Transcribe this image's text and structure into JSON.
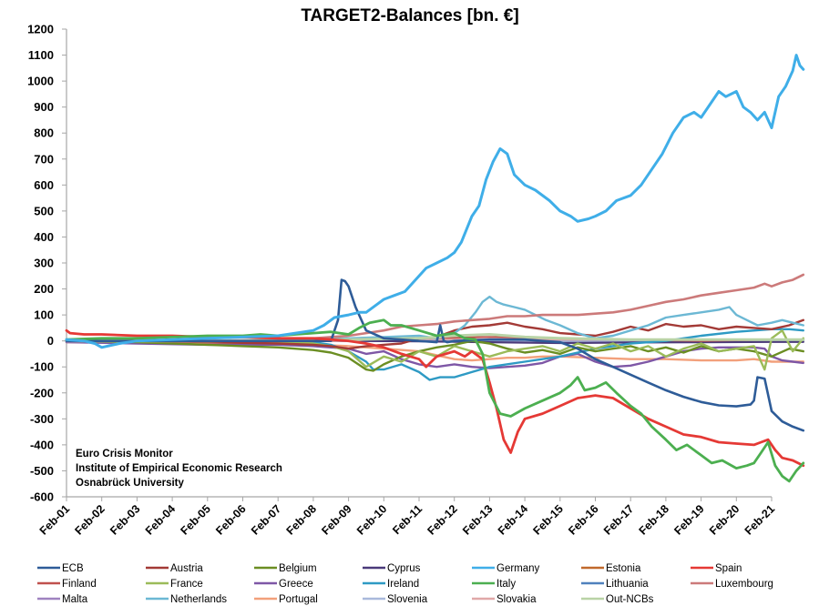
{
  "chart_data": {
    "type": "line",
    "title": "TARGET2-Balances [bn. €]",
    "xlabel": "",
    "ylabel": "",
    "ylim": [
      -600,
      1200
    ],
    "yticks": [
      1200,
      1100,
      1000,
      900,
      800,
      700,
      600,
      500,
      400,
      300,
      200,
      100,
      0,
      -100,
      -200,
      -300,
      -400,
      -500,
      -600
    ],
    "xlim": [
      2001.0,
      2021.0
    ],
    "xtick_labels": [
      "Feb-01",
      "Feb-02",
      "Feb-03",
      "Feb-04",
      "Feb-05",
      "Feb-06",
      "Feb-07",
      "Feb-08",
      "Feb-09",
      "Feb-10",
      "Feb-11",
      "Feb-12",
      "Feb-13",
      "Feb-14",
      "Feb-15",
      "Feb-16",
      "Feb-17",
      "Feb-18",
      "Feb-19",
      "Feb-20",
      "Feb-21"
    ],
    "grid": false,
    "legend_position": "bottom",
    "annotation": [
      "Euro Crisis Monitor",
      "Institute of Empirical Economic Research",
      "Osnabrück University"
    ],
    "x_note": "x values are years since Feb-01 (0 = Feb 2001, 20 = Feb 2021)",
    "series": [
      {
        "name": "ECB",
        "color": "#2E5C98",
        "width": 2.6,
        "x": [
          0,
          2,
          4,
          6,
          7,
          7.5,
          7.7,
          7.8,
          7.9,
          8.0,
          8.2,
          8.5,
          9,
          9.5,
          10,
          10.5,
          10.6,
          10.7,
          10.8,
          11,
          12,
          13,
          13.5,
          14,
          14.5,
          15,
          15.5,
          16,
          16.5,
          17,
          17.5,
          18,
          18.5,
          19,
          19.4,
          19.5,
          19.6,
          19.8,
          20,
          20.3,
          20.6,
          20.9
        ],
        "y": [
          0,
          0,
          0,
          0,
          0,
          0,
          80,
          235,
          230,
          210,
          130,
          40,
          10,
          5,
          0,
          -5,
          60,
          0,
          -5,
          0,
          5,
          5,
          0,
          -5,
          -30,
          -70,
          -100,
          -130,
          -160,
          -190,
          -215,
          -235,
          -248,
          -252,
          -245,
          -230,
          -140,
          -145,
          -270,
          -310,
          -330,
          -345
        ]
      },
      {
        "name": "Austria",
        "color": "#A33A36",
        "width": 2.4,
        "x": [
          0,
          2,
          4,
          6,
          7,
          7.5,
          8,
          8.5,
          9,
          9.5,
          10,
          10.5,
          11,
          11.5,
          12,
          12.5,
          13,
          13.5,
          14,
          14.5,
          15,
          15.5,
          16,
          16.5,
          17,
          17.5,
          18,
          18.5,
          19,
          19.5,
          20,
          20.5,
          20.9
        ],
        "y": [
          0,
          0,
          -5,
          -10,
          -15,
          -20,
          -30,
          -20,
          -15,
          -10,
          10,
          15,
          40,
          55,
          60,
          70,
          55,
          45,
          30,
          25,
          20,
          35,
          55,
          40,
          65,
          55,
          60,
          45,
          55,
          50,
          45,
          60,
          80
        ]
      },
      {
        "name": "Belgium",
        "color": "#6B8E23",
        "width": 2.4,
        "x": [
          0,
          2,
          4,
          5,
          6,
          7,
          7.5,
          8,
          8.5,
          8.7,
          9,
          9.5,
          10,
          10.5,
          11,
          11.5,
          12,
          12.5,
          13,
          13.5,
          14,
          14.5,
          15,
          15.5,
          16,
          16.5,
          17,
          17.5,
          18,
          18.5,
          19,
          19.5,
          20,
          20.5,
          20.9
        ],
        "y": [
          0,
          -5,
          -15,
          -20,
          -25,
          -35,
          -45,
          -65,
          -110,
          -115,
          -90,
          -60,
          -40,
          -25,
          -15,
          0,
          -10,
          -30,
          -45,
          -35,
          -50,
          -25,
          -40,
          -30,
          -20,
          -40,
          -25,
          -45,
          -20,
          -40,
          -30,
          -40,
          -60,
          -30,
          -40
        ]
      },
      {
        "name": "Cyprus",
        "color": "#4B3A7A",
        "width": 2.2,
        "x": [
          0,
          4,
          8,
          10,
          12,
          14,
          16,
          18,
          20,
          20.9
        ],
        "y": [
          0,
          0,
          0,
          -2,
          -5,
          -8,
          -6,
          -5,
          -4,
          -4
        ]
      },
      {
        "name": "Germany",
        "color": "#3FAEE8",
        "width": 3.0,
        "x": [
          0,
          0.5,
          0.8,
          1.0,
          1.5,
          2,
          3,
          4,
          5,
          6,
          6.5,
          7,
          7.3,
          7.6,
          8,
          8.3,
          8.5,
          8.8,
          9,
          9.3,
          9.6,
          9.8,
          10,
          10.2,
          10.5,
          10.8,
          11,
          11.2,
          11.5,
          11.7,
          11.9,
          12.1,
          12.3,
          12.5,
          12.7,
          13,
          13.3,
          13.7,
          14,
          14.3,
          14.5,
          14.8,
          15,
          15.3,
          15.6,
          16,
          16.3,
          16.6,
          16.9,
          17.2,
          17.5,
          17.8,
          18,
          18.3,
          18.5,
          18.7,
          19,
          19.2,
          19.4,
          19.6,
          19.8,
          20,
          20.2,
          20.4,
          20.6,
          20.7,
          20.8,
          20.9
        ],
        "y": [
          5,
          0,
          -10,
          -25,
          -10,
          0,
          5,
          10,
          15,
          20,
          30,
          40,
          60,
          90,
          100,
          110,
          110,
          140,
          160,
          175,
          190,
          220,
          250,
          280,
          300,
          320,
          340,
          380,
          480,
          520,
          620,
          690,
          740,
          720,
          640,
          600,
          580,
          540,
          500,
          480,
          460,
          470,
          480,
          500,
          540,
          560,
          600,
          660,
          720,
          800,
          860,
          880,
          860,
          920,
          960,
          940,
          960,
          900,
          880,
          850,
          880,
          820,
          940,
          980,
          1040,
          1100,
          1060,
          1045
        ]
      },
      {
        "name": "Estonia",
        "color": "#C0692C",
        "width": 2.0,
        "x": [
          0,
          4,
          8,
          12,
          16,
          20,
          20.9
        ],
        "y": [
          0,
          0,
          0,
          -1,
          -1,
          -2,
          -2
        ]
      },
      {
        "name": "Spain",
        "color": "#E53935",
        "width": 2.8,
        "x": [
          0,
          0.1,
          0.5,
          1,
          2,
          3,
          4,
          5,
          6,
          7,
          7.5,
          8,
          8.5,
          9,
          9.5,
          10,
          10.2,
          10.5,
          11,
          11.3,
          11.5,
          11.8,
          12,
          12.2,
          12.4,
          12.6,
          12.8,
          13,
          13.5,
          14,
          14.5,
          15,
          15.5,
          16,
          16.5,
          17,
          17.5,
          18,
          18.5,
          19,
          19.5,
          19.7,
          19.9,
          20.1,
          20.3,
          20.6,
          20.9
        ],
        "y": [
          40,
          30,
          25,
          25,
          20,
          20,
          15,
          15,
          10,
          10,
          5,
          0,
          -10,
          -25,
          -50,
          -70,
          -100,
          -60,
          -40,
          -60,
          -40,
          -70,
          -160,
          -260,
          -380,
          -430,
          -350,
          -300,
          -280,
          -250,
          -220,
          -210,
          -220,
          -260,
          -300,
          -330,
          -360,
          -370,
          -390,
          -395,
          -400,
          -390,
          -380,
          -420,
          -450,
          -460,
          -480
        ]
      },
      {
        "name": "Finland",
        "color": "#C0504D",
        "width": 2.0,
        "x": [
          0,
          4,
          8,
          10,
          12,
          14,
          16,
          18,
          20,
          20.9
        ],
        "y": [
          0,
          0,
          5,
          10,
          15,
          10,
          5,
          0,
          5,
          5
        ]
      },
      {
        "name": "France",
        "color": "#9BBB59",
        "width": 2.4,
        "x": [
          0,
          2,
          4,
          6,
          7,
          7.5,
          8,
          8.5,
          9,
          9.5,
          10,
          10.5,
          11,
          11.5,
          12,
          12.5,
          13,
          13.5,
          14,
          14.5,
          15,
          15.5,
          16,
          16.5,
          17,
          17.5,
          18,
          18.5,
          19,
          19.5,
          19.8,
          20,
          20.3,
          20.6,
          20.9
        ],
        "y": [
          0,
          5,
          0,
          -5,
          -10,
          -20,
          -40,
          -100,
          -60,
          -80,
          -40,
          -60,
          -20,
          -40,
          -60,
          -40,
          -30,
          -20,
          -40,
          -10,
          -30,
          -10,
          -40,
          -20,
          -60,
          -30,
          -10,
          -40,
          -30,
          -20,
          -110,
          10,
          40,
          -40,
          10
        ]
      },
      {
        "name": "Greece",
        "color": "#7E57A6",
        "width": 2.4,
        "x": [
          0,
          2,
          4,
          6,
          7,
          8,
          8.5,
          9,
          9.5,
          10,
          10.5,
          11,
          11.5,
          12,
          12.5,
          13,
          13.5,
          14,
          14.5,
          15,
          15.5,
          16,
          16.5,
          17,
          17.5,
          18,
          18.5,
          19,
          19.5,
          19.8,
          20,
          20.3,
          20.6,
          20.9
        ],
        "y": [
          -5,
          -10,
          -15,
          -15,
          -20,
          -30,
          -50,
          -40,
          -70,
          -90,
          -100,
          -90,
          -100,
          -105,
          -100,
          -95,
          -85,
          -60,
          -50,
          -80,
          -100,
          -95,
          -80,
          -60,
          -40,
          -30,
          -25,
          -25,
          -25,
          -30,
          -60,
          -75,
          -80,
          -85
        ]
      },
      {
        "name": "Ireland",
        "color": "#2E9AC4",
        "width": 2.4,
        "x": [
          0,
          4,
          7,
          7.5,
          8,
          8.5,
          8.7,
          9,
          9.5,
          10,
          10.3,
          10.6,
          11,
          11.5,
          12,
          13,
          14,
          15,
          16,
          17,
          18,
          19,
          20,
          20.5,
          20.9
        ],
        "y": [
          0,
          0,
          -5,
          -15,
          -40,
          -80,
          -110,
          -110,
          -90,
          -120,
          -150,
          -140,
          -140,
          -120,
          -100,
          -80,
          -60,
          -30,
          -10,
          0,
          20,
          35,
          45,
          45,
          40
        ]
      },
      {
        "name": "Italy",
        "color": "#4CAF50",
        "width": 2.8,
        "x": [
          0,
          1,
          2,
          3,
          4,
          5,
          5.5,
          6,
          6.5,
          7,
          7.5,
          8,
          8.3,
          8.6,
          9,
          9.2,
          9.5,
          10,
          10.5,
          11,
          11.3,
          11.6,
          11.8,
          12,
          12.3,
          12.6,
          13,
          13.5,
          14,
          14.3,
          14.5,
          14.7,
          15,
          15.3,
          15.6,
          16,
          16.3,
          16.6,
          17,
          17.3,
          17.6,
          18,
          18.3,
          18.6,
          19,
          19.3,
          19.5,
          19.7,
          19.9,
          20.1,
          20.3,
          20.5,
          20.7,
          20.9
        ],
        "y": [
          5,
          10,
          10,
          15,
          20,
          20,
          25,
          20,
          25,
          30,
          35,
          25,
          50,
          70,
          80,
          60,
          60,
          40,
          20,
          30,
          10,
          5,
          -50,
          -200,
          -280,
          -290,
          -260,
          -230,
          -200,
          -170,
          -140,
          -190,
          -180,
          -160,
          -200,
          -250,
          -280,
          -330,
          -380,
          -420,
          -400,
          -440,
          -470,
          -460,
          -490,
          -480,
          -470,
          -430,
          -390,
          -480,
          -520,
          -540,
          -500,
          -470
        ]
      },
      {
        "name": "Lithuania",
        "color": "#4F81BD",
        "width": 2.0,
        "x": [
          0,
          4,
          8,
          12,
          16,
          20,
          20.9
        ],
        "y": [
          0,
          0,
          0,
          0,
          0,
          -1,
          -1
        ]
      },
      {
        "name": "Luxembourg",
        "color": "#CC7A7A",
        "width": 2.6,
        "x": [
          0,
          2,
          4,
          6,
          7,
          7.5,
          8,
          8.5,
          9,
          9.5,
          10,
          10.5,
          11,
          11.5,
          12,
          12.5,
          13,
          13.5,
          14,
          14.5,
          15,
          15.5,
          16,
          16.5,
          17,
          17.5,
          18,
          18.5,
          19,
          19.5,
          19.8,
          20,
          20.3,
          20.6,
          20.9
        ],
        "y": [
          0,
          0,
          0,
          5,
          10,
          15,
          20,
          30,
          40,
          55,
          60,
          65,
          75,
          80,
          85,
          95,
          95,
          100,
          100,
          100,
          105,
          110,
          120,
          135,
          150,
          160,
          175,
          185,
          195,
          205,
          220,
          210,
          225,
          235,
          255
        ]
      },
      {
        "name": "Malta",
        "color": "#9F82C0",
        "width": 2.0,
        "x": [
          0,
          4,
          8,
          12,
          16,
          20,
          20.9
        ],
        "y": [
          0,
          0,
          0,
          -1,
          -2,
          -3,
          -3
        ]
      },
      {
        "name": "Netherlands",
        "color": "#6CB8D4",
        "width": 2.4,
        "x": [
          0,
          2,
          4,
          6,
          7,
          8,
          9,
          10,
          10.5,
          11,
          11.3,
          11.6,
          11.8,
          12,
          12.2,
          12.4,
          12.7,
          13,
          13.3,
          13.6,
          14,
          14.5,
          15,
          15.5,
          16,
          16.5,
          17,
          17.5,
          18,
          18.5,
          18.8,
          19,
          19.3,
          19.6,
          20,
          20.3,
          20.6,
          20.9
        ],
        "y": [
          0,
          0,
          0,
          0,
          5,
          10,
          15,
          20,
          10,
          30,
          60,
          110,
          150,
          170,
          150,
          140,
          130,
          120,
          100,
          80,
          60,
          30,
          10,
          20,
          40,
          60,
          90,
          100,
          110,
          120,
          130,
          100,
          80,
          60,
          70,
          80,
          70,
          60
        ]
      },
      {
        "name": "Portugal",
        "color": "#F2A07B",
        "width": 2.4,
        "x": [
          0,
          2,
          4,
          6,
          7,
          8,
          9,
          10,
          10.5,
          11,
          11.5,
          12,
          12.5,
          13,
          13.5,
          14,
          15,
          16,
          17,
          18,
          19,
          19.5,
          20,
          20.5,
          20.9
        ],
        "y": [
          -5,
          -5,
          -10,
          -10,
          -15,
          -20,
          -30,
          -40,
          -55,
          -70,
          -75,
          -70,
          -65,
          -65,
          -60,
          -60,
          -65,
          -70,
          -70,
          -75,
          -75,
          -70,
          -80,
          -80,
          -80
        ]
      },
      {
        "name": "Slovenia",
        "color": "#A9B9DC",
        "width": 2.0,
        "x": [
          0,
          4,
          8,
          12,
          16,
          20,
          20.9
        ],
        "y": [
          0,
          0,
          0,
          -2,
          -3,
          -3,
          -3
        ]
      },
      {
        "name": "Slovakia",
        "color": "#E0A8A8",
        "width": 2.2,
        "x": [
          0,
          4,
          8,
          9,
          12,
          16,
          20,
          20.9
        ],
        "y": [
          0,
          0,
          0,
          10,
          5,
          5,
          5,
          5
        ]
      },
      {
        "name": "Out-NCBs",
        "color": "#B9D3A6",
        "width": 3.0,
        "x": [
          0,
          4,
          8,
          10,
          11,
          12,
          13,
          14,
          16,
          18,
          20,
          20.9
        ],
        "y": [
          0,
          0,
          5,
          10,
          20,
          25,
          15,
          10,
          5,
          5,
          5,
          5
        ]
      }
    ]
  }
}
